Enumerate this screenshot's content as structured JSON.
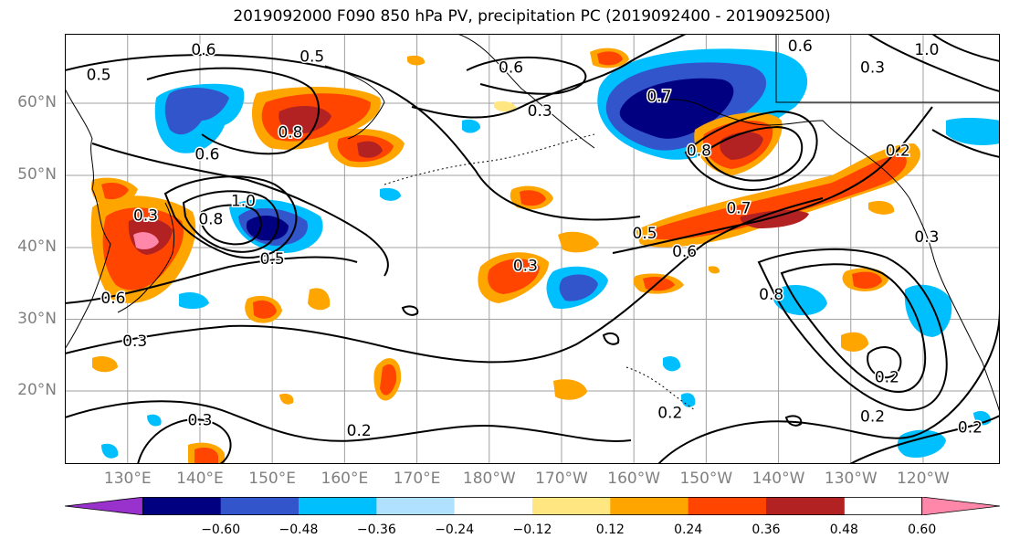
{
  "title": "2019092000 F090 850 hPa PV, precipitation PC (2019092400 - 2019092500)",
  "map": {
    "lat_labels": [
      {
        "text": "60°N",
        "lat": 60
      },
      {
        "text": "50°N",
        "lat": 50
      },
      {
        "text": "40°N",
        "lat": 40
      },
      {
        "text": "30°N",
        "lat": 30
      },
      {
        "text": "20°N",
        "lat": 20
      }
    ],
    "lon_labels": [
      {
        "text": "130°E",
        "lon": 130
      },
      {
        "text": "140°E",
        "lon": 140
      },
      {
        "text": "150°E",
        "lon": 150
      },
      {
        "text": "160°E",
        "lon": 160
      },
      {
        "text": "170°E",
        "lon": 170
      },
      {
        "text": "180°W",
        "lon": 180
      },
      {
        "text": "170°W",
        "lon": 190
      },
      {
        "text": "160°W",
        "lon": 200
      },
      {
        "text": "150°W",
        "lon": 210
      },
      {
        "text": "140°W",
        "lon": 220
      },
      {
        "text": "130°W",
        "lon": 230
      },
      {
        "text": "120°W",
        "lon": 240
      }
    ],
    "contour_labels": [
      {
        "text": "0.6",
        "lon": 140.5,
        "lat": 67.5
      },
      {
        "text": "0.5",
        "lon": 126,
        "lat": 64
      },
      {
        "text": "0.5",
        "lon": 155.5,
        "lat": 66.5
      },
      {
        "text": "0.6",
        "lon": 183,
        "lat": 65
      },
      {
        "text": "0.3",
        "lon": 187,
        "lat": 59
      },
      {
        "text": "0.8",
        "lon": 152.5,
        "lat": 56
      },
      {
        "text": "0.6",
        "lon": 141,
        "lat": 53
      },
      {
        "text": "1.0",
        "lon": 146,
        "lat": 46.5
      },
      {
        "text": "0.8",
        "lon": 141.5,
        "lat": 44
      },
      {
        "text": "0.3",
        "lon": 132.5,
        "lat": 44.5
      },
      {
        "text": "0.5",
        "lon": 150,
        "lat": 38.5
      },
      {
        "text": "0.6",
        "lon": 128,
        "lat": 33
      },
      {
        "text": "0.3",
        "lon": 185,
        "lat": 37.5
      },
      {
        "text": "0.8",
        "lon": 209,
        "lat": 53.5
      },
      {
        "text": "0.7",
        "lon": 203.5,
        "lat": 61
      },
      {
        "text": "0.7",
        "lon": 214.5,
        "lat": 45.5
      },
      {
        "text": "0.5",
        "lon": 201.5,
        "lat": 42
      },
      {
        "text": "0.6",
        "lon": 207,
        "lat": 39.5
      },
      {
        "text": "0.8",
        "lon": 219,
        "lat": 33.5
      },
      {
        "text": "0.3",
        "lon": 131,
        "lat": 27
      },
      {
        "text": "0.3",
        "lon": 240.5,
        "lat": 41.5
      },
      {
        "text": "0.2",
        "lon": 236.5,
        "lat": 53.5
      },
      {
        "text": "0.3",
        "lon": 233,
        "lat": 65
      },
      {
        "text": "1.0",
        "lon": 240.5,
        "lat": 67.5
      },
      {
        "text": "0.6",
        "lon": 223,
        "lat": 68
      },
      {
        "text": "0.3",
        "lon": 140,
        "lat": 16
      },
      {
        "text": "0.2",
        "lon": 162,
        "lat": 14.5
      },
      {
        "text": "0.2",
        "lon": 205,
        "lat": 17
      },
      {
        "text": "0.2",
        "lon": 233,
        "lat": 16.5
      },
      {
        "text": "0.2",
        "lon": 246.5,
        "lat": 15
      },
      {
        "text": "0.2",
        "lon": 235,
        "lat": 22
      }
    ]
  },
  "colorbar": {
    "colors": [
      "#9932cc",
      "#000080",
      "#3355cc",
      "#00bfff",
      "#b0e2ff",
      "#ffffff",
      "#ffe680",
      "#ffa500",
      "#ff4500",
      "#b22222",
      "#ff88aa"
    ],
    "tick_labels": [
      "−0.60",
      "−0.48",
      "−0.36",
      "−0.24",
      "−0.12",
      "0.12",
      "0.24",
      "0.36",
      "0.48",
      "0.60"
    ]
  },
  "colors": {
    "land_outline": "#000000",
    "grid": "#a0a0a0",
    "tick_label": "#808080"
  }
}
